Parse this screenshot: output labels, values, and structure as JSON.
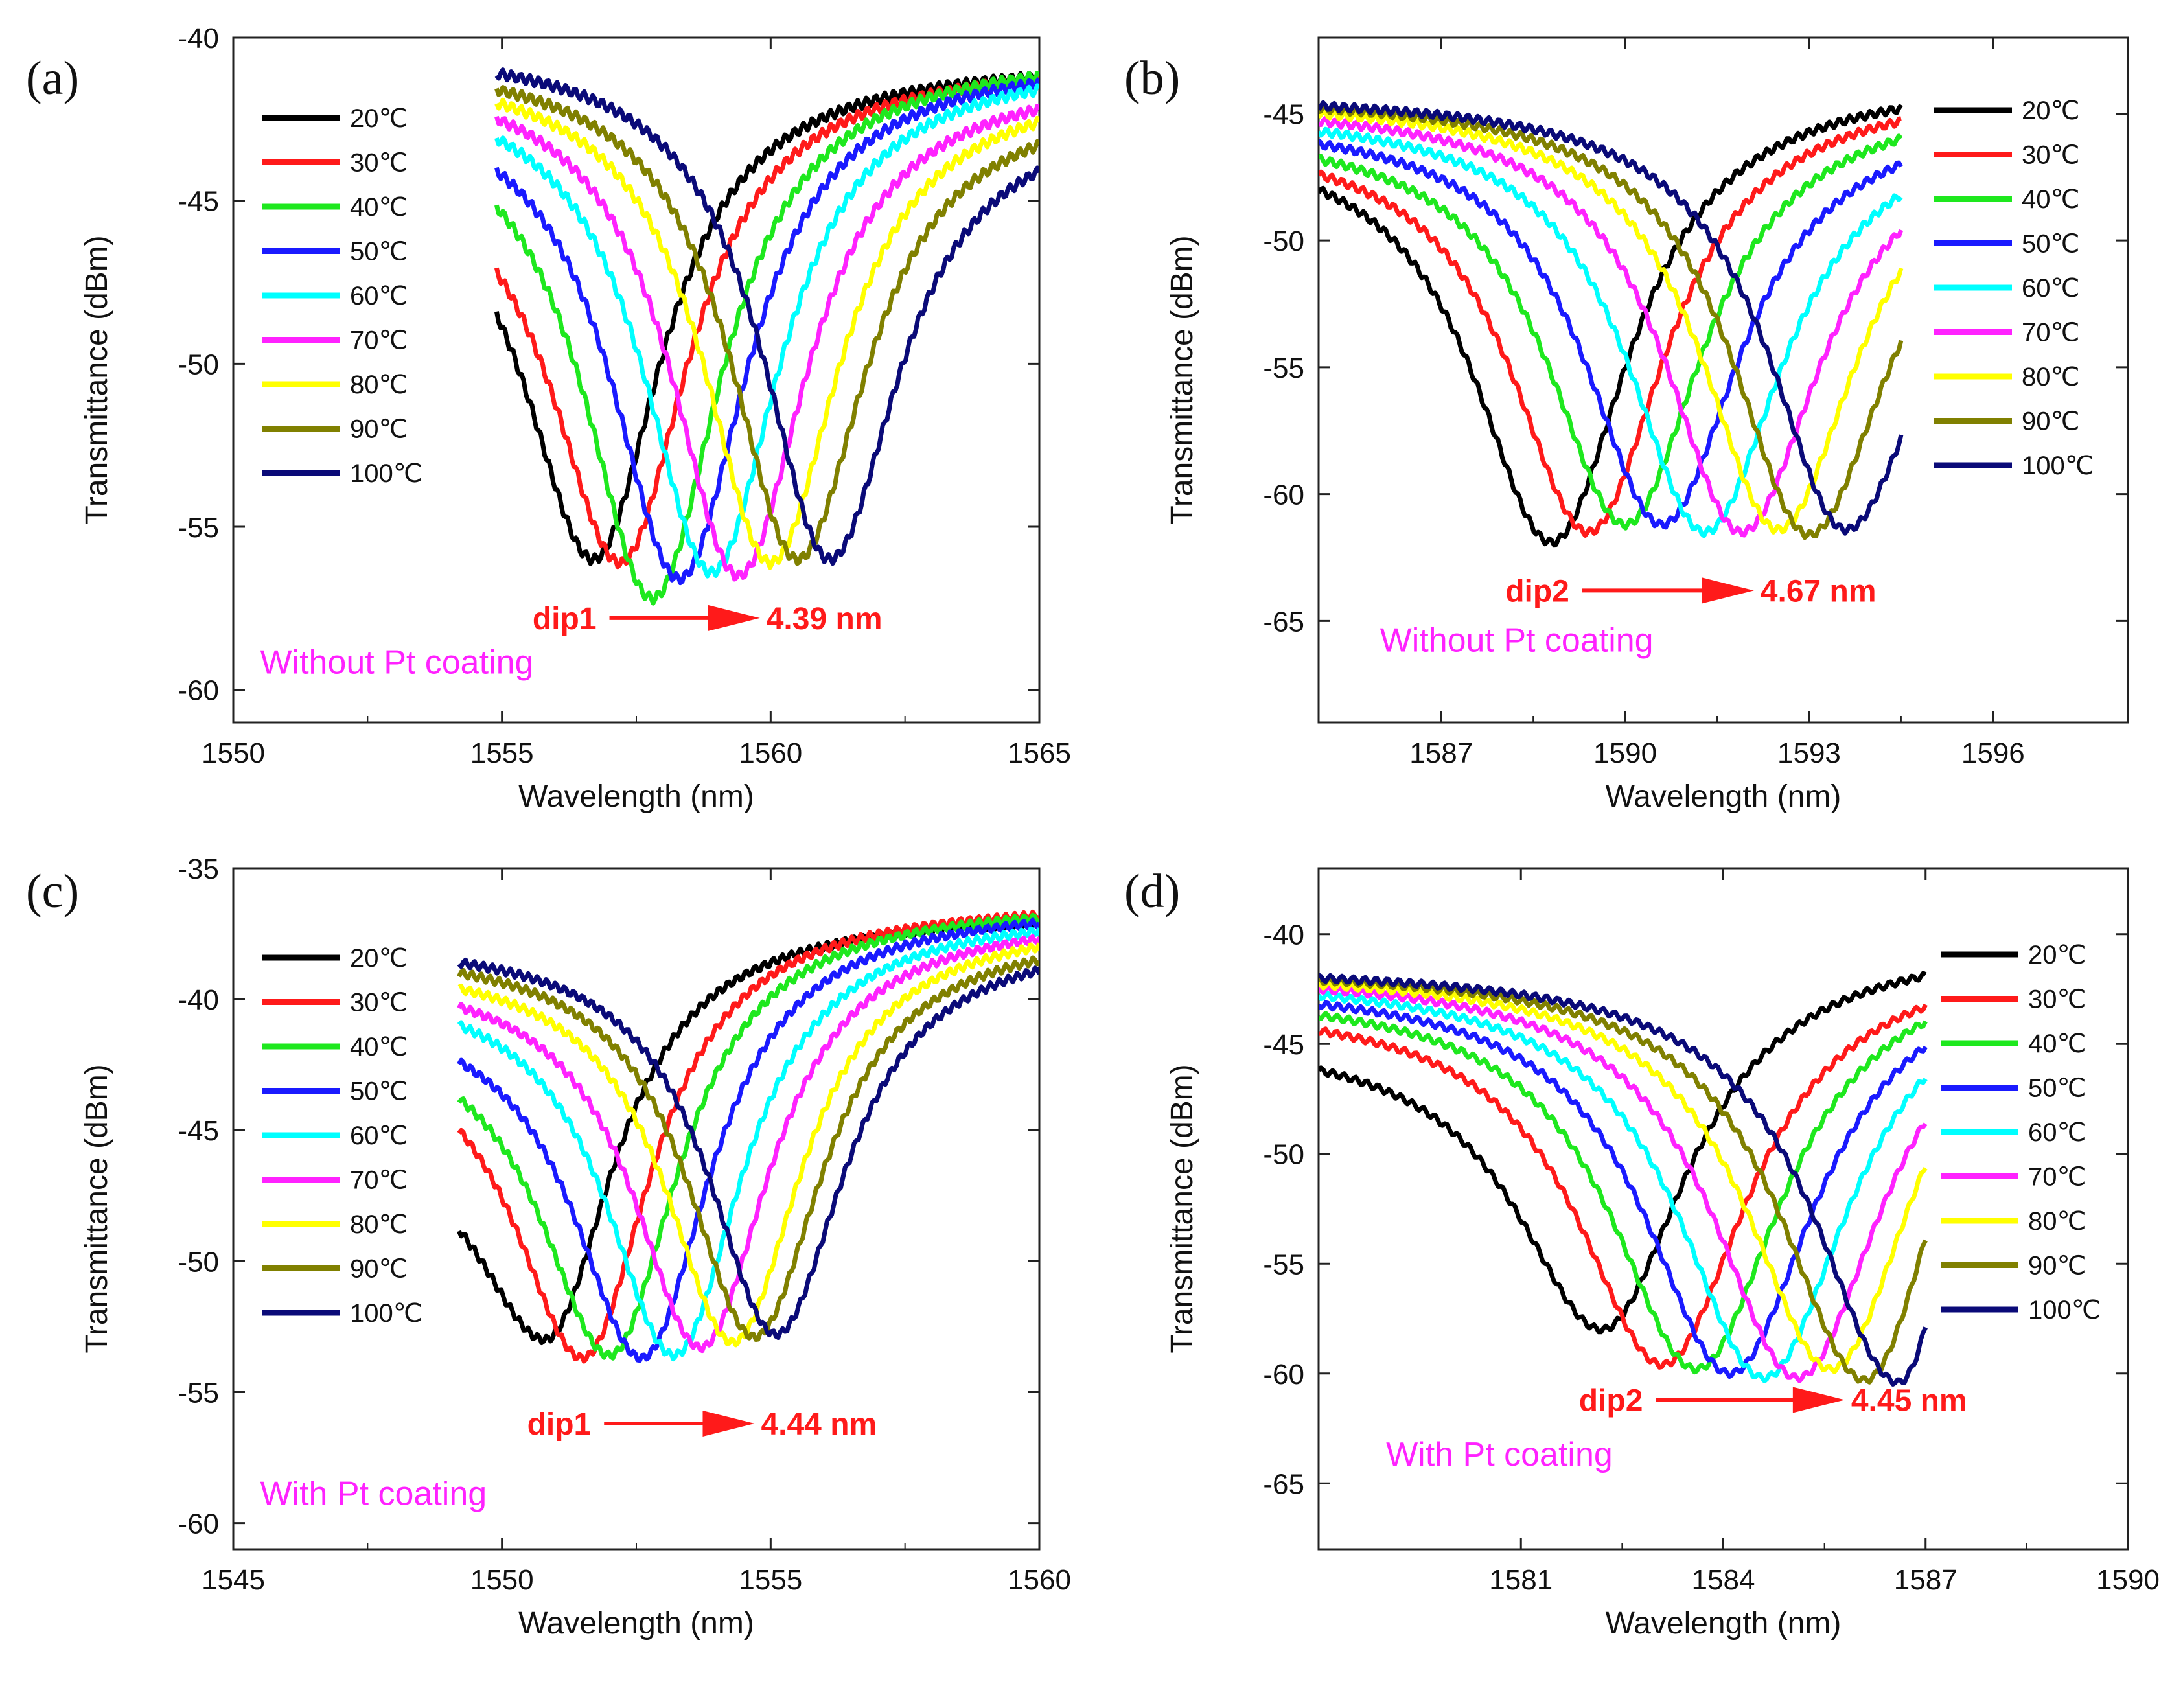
{
  "colors": {
    "series": [
      "#000000",
      "#ff1a1a",
      "#1ee81e",
      "#1a1aff",
      "#00ffff",
      "#ff22ff",
      "#ffff00",
      "#808000",
      "#0a0a78"
    ],
    "annotation": "#ff1a1a",
    "note": "#ff22ff"
  },
  "chart_data": [
    {
      "type": "line",
      "panel_label": "(a)",
      "xlabel": "Wavelength (nm)",
      "ylabel": "Transmittance (dBm)",
      "xlim": [
        1550,
        1565
      ],
      "ylim": [
        -61,
        -40
      ],
      "xticks": [
        1550,
        1555,
        1560,
        1565
      ],
      "yticks": [
        -40,
        -45,
        -50,
        -55,
        -60
      ],
      "legend_position": "upper-left",
      "legend": [
        "20℃",
        "30℃",
        "40℃",
        "50℃",
        "60℃",
        "70℃",
        "80℃",
        "90℃",
        "100℃"
      ],
      "series": [
        {
          "name": "20℃",
          "x_range": [
            1554.9,
            1565
          ],
          "dip_x": 1556.7,
          "dip_y": -56.0,
          "left_y": -48.5,
          "right_y": -41.2
        },
        {
          "name": "30℃",
          "x_range": [
            1554.9,
            1565
          ],
          "dip_x": 1557.2,
          "dip_y": -56.1,
          "left_y": -47.2,
          "right_y": -41.3
        },
        {
          "name": "40℃",
          "x_range": [
            1554.9,
            1565
          ],
          "dip_x": 1557.8,
          "dip_y": -57.2,
          "left_y": -45.2,
          "right_y": -41.2
        },
        {
          "name": "50℃",
          "x_range": [
            1554.9,
            1565
          ],
          "dip_x": 1558.3,
          "dip_y": -56.6,
          "left_y": -44.1,
          "right_y": -41.4
        },
        {
          "name": "60℃",
          "x_range": [
            1554.9,
            1565
          ],
          "dip_x": 1558.9,
          "dip_y": -56.4,
          "left_y": -43.1,
          "right_y": -41.6
        },
        {
          "name": "70℃",
          "x_range": [
            1554.9,
            1565
          ],
          "dip_x": 1559.4,
          "dip_y": -56.5,
          "left_y": -42.5,
          "right_y": -42.2
        },
        {
          "name": "80℃",
          "x_range": [
            1554.9,
            1565
          ],
          "dip_x": 1560.0,
          "dip_y": -56.1,
          "left_y": -42.0,
          "right_y": -42.6
        },
        {
          "name": "90℃",
          "x_range": [
            1554.9,
            1565
          ],
          "dip_x": 1560.5,
          "dip_y": -56.0,
          "left_y": -41.6,
          "right_y": -43.3
        },
        {
          "name": "100℃",
          "x_range": [
            1554.9,
            1565
          ],
          "dip_x": 1561.1,
          "dip_y": -56.0,
          "left_y": -41.1,
          "right_y": -44.1
        }
      ],
      "annotation": {
        "label": "dip1",
        "shift_label": "4.39 nm",
        "x_start": 1557.0,
        "x_end": 1559.8,
        "y": -57.8
      },
      "note": "Without Pt coating",
      "note_x": 1550.5,
      "note_y": -59.5
    },
    {
      "type": "line",
      "panel_label": "(b)",
      "xlabel": "Wavelength (nm)",
      "ylabel": "Transmittance (dBm)",
      "xlim": [
        1585.0,
        1598.2
      ],
      "ylim": [
        -69,
        -42
      ],
      "xticks": [
        1587,
        1590,
        1593,
        1596
      ],
      "yticks": [
        -45,
        -50,
        -55,
        -60,
        -65
      ],
      "legend_position": "upper-right",
      "legend": [
        "20℃",
        "30℃",
        "40℃",
        "50℃",
        "60℃",
        "70℃",
        "80℃",
        "90℃",
        "100℃"
      ],
      "series": [
        {
          "name": "20℃",
          "x_range": [
            1585,
            1594.5
          ],
          "dip_x": 1588.8,
          "dip_y": -61.9,
          "left_y": -48.0,
          "right_y": -44.8
        },
        {
          "name": "30℃",
          "x_range": [
            1585,
            1594.5
          ],
          "dip_x": 1589.4,
          "dip_y": -61.5,
          "left_y": -47.4,
          "right_y": -45.3
        },
        {
          "name": "40℃",
          "x_range": [
            1585,
            1594.5
          ],
          "dip_x": 1590.0,
          "dip_y": -61.2,
          "left_y": -46.8,
          "right_y": -46.0
        },
        {
          "name": "50℃",
          "x_range": [
            1585,
            1594.5
          ],
          "dip_x": 1590.6,
          "dip_y": -61.2,
          "left_y": -46.2,
          "right_y": -47.0
        },
        {
          "name": "60℃",
          "x_range": [
            1585,
            1594.5
          ],
          "dip_x": 1591.3,
          "dip_y": -61.5,
          "left_y": -45.7,
          "right_y": -48.2
        },
        {
          "name": "70℃",
          "x_range": [
            1585,
            1594.5
          ],
          "dip_x": 1591.9,
          "dip_y": -61.5,
          "left_y": -45.3,
          "right_y": -49.6
        },
        {
          "name": "80℃",
          "x_range": [
            1585,
            1594.5
          ],
          "dip_x": 1592.5,
          "dip_y": -61.4,
          "left_y": -45.0,
          "right_y": -51.2
        },
        {
          "name": "90℃",
          "x_range": [
            1585,
            1594.5
          ],
          "dip_x": 1593.0,
          "dip_y": -61.6,
          "left_y": -44.8,
          "right_y": -54.0
        },
        {
          "name": "100℃",
          "x_range": [
            1585,
            1594.5
          ],
          "dip_x": 1593.6,
          "dip_y": -61.4,
          "left_y": -44.7,
          "right_y": -57.8
        }
      ],
      "annotation": {
        "label": "dip2",
        "shift_label": "4.67 nm",
        "x_start": 1589.3,
        "x_end": 1592.1,
        "y": -63.8
      },
      "note": "Without Pt coating",
      "note_x": 1586.0,
      "note_y": -66.2
    },
    {
      "type": "line",
      "panel_label": "(c)",
      "xlabel": "Wavelength (nm)",
      "ylabel": "Transmittance (dBm)",
      "xlim": [
        1545,
        1560
      ],
      "ylim": [
        -61,
        -35
      ],
      "xticks": [
        1545,
        1550,
        1555,
        1560
      ],
      "yticks": [
        -35,
        -40,
        -45,
        -50,
        -55,
        -60
      ],
      "legend_position": "upper-left",
      "legend": [
        "20℃",
        "30℃",
        "40℃",
        "50℃",
        "60℃",
        "70℃",
        "80℃",
        "90℃",
        "100℃"
      ],
      "series": [
        {
          "name": "20℃",
          "x_range": [
            1549.2,
            1560
          ],
          "dip_x": 1550.8,
          "dip_y": -53.0,
          "left_y": -48.8,
          "right_y": -37.1
        },
        {
          "name": "30℃",
          "x_range": [
            1549.2,
            1560
          ],
          "dip_x": 1551.5,
          "dip_y": -53.7,
          "left_y": -45.0,
          "right_y": -36.8
        },
        {
          "name": "40℃",
          "x_range": [
            1549.2,
            1560
          ],
          "dip_x": 1552.0,
          "dip_y": -53.6,
          "left_y": -43.8,
          "right_y": -36.9
        },
        {
          "name": "50℃",
          "x_range": [
            1549.2,
            1560
          ],
          "dip_x": 1552.6,
          "dip_y": -53.7,
          "left_y": -42.4,
          "right_y": -37.1
        },
        {
          "name": "60℃",
          "x_range": [
            1549.2,
            1560
          ],
          "dip_x": 1553.2,
          "dip_y": -53.6,
          "left_y": -41.0,
          "right_y": -37.4
        },
        {
          "name": "70℃",
          "x_range": [
            1549.2,
            1560
          ],
          "dip_x": 1553.7,
          "dip_y": -53.3,
          "left_y": -40.3,
          "right_y": -37.7
        },
        {
          "name": "80℃",
          "x_range": [
            1549.2,
            1560
          ],
          "dip_x": 1554.3,
          "dip_y": -53.1,
          "left_y": -39.6,
          "right_y": -38.0
        },
        {
          "name": "90℃",
          "x_range": [
            1549.2,
            1560
          ],
          "dip_x": 1554.7,
          "dip_y": -52.9,
          "left_y": -39.0,
          "right_y": -38.5
        },
        {
          "name": "100℃",
          "x_range": [
            1549.2,
            1560
          ],
          "dip_x": 1555.1,
          "dip_y": -52.8,
          "left_y": -38.6,
          "right_y": -38.9
        }
      ],
      "annotation": {
        "label": "dip1",
        "shift_label": "4.44 nm",
        "x_start": 1551.9,
        "x_end": 1554.7,
        "y": -56.2
      },
      "note": "With Pt coating",
      "note_x": 1545.5,
      "note_y": -59.3
    },
    {
      "type": "line",
      "panel_label": "(d)",
      "xlabel": "Wavelength (nm)",
      "ylabel": "Transmittance (dBm)",
      "xlim": [
        1578.0,
        1590.0
      ],
      "ylim": [
        -68,
        -37
      ],
      "xticks": [
        1581,
        1584,
        1587,
        1590
      ],
      "yticks": [
        -40,
        -45,
        -50,
        -55,
        -60,
        -65
      ],
      "legend_position": "upper-right",
      "legend": [
        "20℃",
        "30℃",
        "40℃",
        "50℃",
        "60℃",
        "70℃",
        "80℃",
        "90℃",
        "100℃"
      ],
      "series": [
        {
          "name": "20℃",
          "x_range": [
            1578,
            1587
          ],
          "dip_x": 1582.2,
          "dip_y": -58.0,
          "left_y": -46.2,
          "right_y": -41.9
        },
        {
          "name": "30℃",
          "x_range": [
            1578,
            1587
          ],
          "dip_x": 1583.1,
          "dip_y": -59.6,
          "left_y": -44.4,
          "right_y": -43.3
        },
        {
          "name": "40℃",
          "x_range": [
            1578,
            1587
          ],
          "dip_x": 1583.6,
          "dip_y": -59.8,
          "left_y": -43.7,
          "right_y": -44.0
        },
        {
          "name": "50℃",
          "x_range": [
            1578,
            1587
          ],
          "dip_x": 1584.1,
          "dip_y": -60.0,
          "left_y": -43.2,
          "right_y": -45.1
        },
        {
          "name": "60℃",
          "x_range": [
            1578,
            1587
          ],
          "dip_x": 1584.6,
          "dip_y": -60.2,
          "left_y": -42.8,
          "right_y": -46.5
        },
        {
          "name": "70℃",
          "x_range": [
            1578,
            1587
          ],
          "dip_x": 1585.1,
          "dip_y": -60.2,
          "left_y": -42.5,
          "right_y": -48.5
        },
        {
          "name": "80℃",
          "x_range": [
            1578,
            1587
          ],
          "dip_x": 1585.6,
          "dip_y": -59.8,
          "left_y": -42.3,
          "right_y": -50.5
        },
        {
          "name": "90℃",
          "x_range": [
            1578,
            1587
          ],
          "dip_x": 1586.1,
          "dip_y": -60.3,
          "left_y": -42.1,
          "right_y": -53.8
        },
        {
          "name": "100℃",
          "x_range": [
            1578,
            1587
          ],
          "dip_x": 1586.6,
          "dip_y": -60.4,
          "left_y": -42.0,
          "right_y": -57.8
        }
      ],
      "annotation": {
        "label": "dip2",
        "shift_label": "4.45 nm",
        "x_start": 1583.0,
        "x_end": 1585.8,
        "y": -61.2
      },
      "note": "With Pt coating",
      "note_x": 1579.0,
      "note_y": -64.2
    }
  ]
}
